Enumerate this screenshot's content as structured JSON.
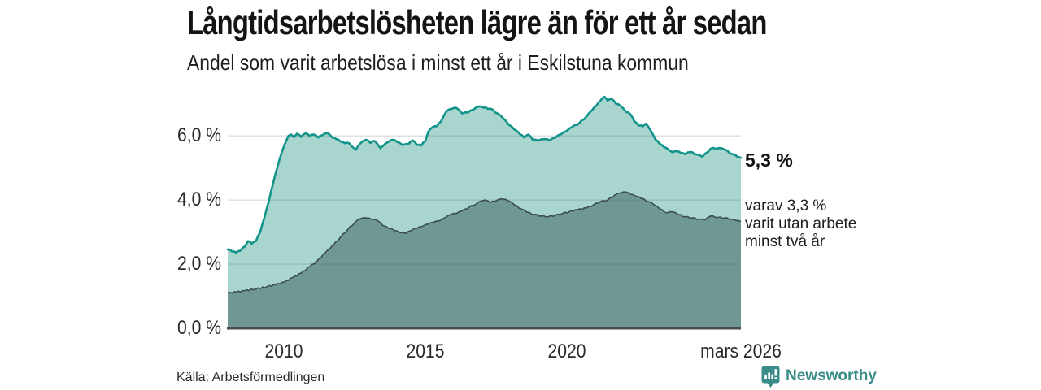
{
  "header": {
    "title": "Långtidsarbetslösheten lägre än för ett år sedan",
    "subtitle": "Andel som varit arbetslösa i minst ett år i Eskilstuna kommun"
  },
  "footer": {
    "source": "Källa: Arbetsförmedlingen",
    "brand": "Newsworthy",
    "brand_color": "#3a8c88"
  },
  "colors": {
    "series1_line": "#12948a",
    "series1_fill": "#a9d5cf",
    "series2_line": "#3c4d4a",
    "series2_fill": "#6f9793",
    "gridline": "rgba(90,100,110,0.22)",
    "baseline": "#4d4d4d"
  },
  "chart_data": {
    "type": "area",
    "title": "Långtidsarbetslösheten lägre än för ett år sedan",
    "subtitle": "Andel som varit arbetslösa i minst ett år i Eskilstuna kommun",
    "x_axis": {
      "min": 2008.0,
      "max": 2026.17,
      "ticks": [
        {
          "value": 2010,
          "label": "2010"
        },
        {
          "value": 2015,
          "label": "2015"
        },
        {
          "value": 2020,
          "label": "2020"
        },
        {
          "value": 2026.17,
          "label": "mars 2026"
        }
      ]
    },
    "y_axis": {
      "min": 0,
      "max": 7.45,
      "gridline_values": [
        2,
        4,
        6
      ],
      "ticks": [
        {
          "value": 0,
          "label": "0,0 %"
        },
        {
          "value": 2,
          "label": "2,0 %"
        },
        {
          "value": 4,
          "label": "4,0 %"
        },
        {
          "value": 6,
          "label": "6,0 %"
        }
      ],
      "grid": true
    },
    "legend_position": "none",
    "annotations": {
      "primary": "5,3 %",
      "secondary_lines": [
        "varav 3,3 %",
        "varit utan arbete",
        "minst två år"
      ]
    },
    "series": [
      {
        "name": "Andel arbetslösa minst ett år",
        "end_value": 5.3,
        "points": [
          [
            2008.0,
            2.46
          ],
          [
            2008.15,
            2.4
          ],
          [
            2008.3,
            2.36
          ],
          [
            2008.45,
            2.42
          ],
          [
            2008.6,
            2.55
          ],
          [
            2008.72,
            2.72
          ],
          [
            2008.85,
            2.64
          ],
          [
            2009.0,
            2.72
          ],
          [
            2009.15,
            3.0
          ],
          [
            2009.3,
            3.45
          ],
          [
            2009.45,
            3.95
          ],
          [
            2009.6,
            4.5
          ],
          [
            2009.75,
            5.0
          ],
          [
            2009.9,
            5.45
          ],
          [
            2010.05,
            5.8
          ],
          [
            2010.15,
            6.0
          ],
          [
            2010.25,
            6.04
          ],
          [
            2010.35,
            5.96
          ],
          [
            2010.45,
            6.07
          ],
          [
            2010.6,
            5.97
          ],
          [
            2010.75,
            6.08
          ],
          [
            2010.9,
            6.0
          ],
          [
            2011.05,
            6.04
          ],
          [
            2011.2,
            5.95
          ],
          [
            2011.35,
            6.02
          ],
          [
            2011.53,
            6.09
          ],
          [
            2011.7,
            5.95
          ],
          [
            2011.85,
            5.9
          ],
          [
            2012.0,
            5.82
          ],
          [
            2012.15,
            5.77
          ],
          [
            2012.3,
            5.77
          ],
          [
            2012.42,
            5.65
          ],
          [
            2012.54,
            5.57
          ],
          [
            2012.7,
            5.77
          ],
          [
            2012.9,
            5.88
          ],
          [
            2013.05,
            5.78
          ],
          [
            2013.2,
            5.84
          ],
          [
            2013.4,
            5.62
          ],
          [
            2013.5,
            5.69
          ],
          [
            2013.7,
            5.82
          ],
          [
            2013.85,
            5.88
          ],
          [
            2014.0,
            5.81
          ],
          [
            2014.2,
            5.71
          ],
          [
            2014.4,
            5.75
          ],
          [
            2014.55,
            5.86
          ],
          [
            2014.7,
            5.72
          ],
          [
            2014.85,
            5.7
          ],
          [
            2015.0,
            5.85
          ],
          [
            2015.1,
            6.13
          ],
          [
            2015.25,
            6.27
          ],
          [
            2015.4,
            6.3
          ],
          [
            2015.55,
            6.45
          ],
          [
            2015.75,
            6.77
          ],
          [
            2015.95,
            6.85
          ],
          [
            2016.1,
            6.87
          ],
          [
            2016.3,
            6.7
          ],
          [
            2016.5,
            6.73
          ],
          [
            2016.7,
            6.82
          ],
          [
            2016.9,
            6.92
          ],
          [
            2017.05,
            6.88
          ],
          [
            2017.3,
            6.85
          ],
          [
            2017.55,
            6.7
          ],
          [
            2017.75,
            6.55
          ],
          [
            2017.95,
            6.35
          ],
          [
            2018.15,
            6.2
          ],
          [
            2018.35,
            6.05
          ],
          [
            2018.5,
            5.95
          ],
          [
            2018.65,
            6.04
          ],
          [
            2018.8,
            5.88
          ],
          [
            2019.0,
            5.85
          ],
          [
            2019.2,
            5.9
          ],
          [
            2019.4,
            5.86
          ],
          [
            2019.6,
            5.95
          ],
          [
            2019.8,
            6.05
          ],
          [
            2020.0,
            6.15
          ],
          [
            2020.2,
            6.28
          ],
          [
            2020.45,
            6.4
          ],
          [
            2020.7,
            6.6
          ],
          [
            2020.9,
            6.8
          ],
          [
            2021.05,
            6.94
          ],
          [
            2021.2,
            7.1
          ],
          [
            2021.34,
            7.22
          ],
          [
            2021.45,
            7.1
          ],
          [
            2021.6,
            7.15
          ],
          [
            2021.75,
            7.0
          ],
          [
            2021.9,
            6.94
          ],
          [
            2022.1,
            6.75
          ],
          [
            2022.25,
            6.68
          ],
          [
            2022.4,
            6.45
          ],
          [
            2022.55,
            6.32
          ],
          [
            2022.7,
            6.3
          ],
          [
            2022.8,
            6.38
          ],
          [
            2022.95,
            6.2
          ],
          [
            2023.15,
            5.88
          ],
          [
            2023.3,
            5.75
          ],
          [
            2023.45,
            5.65
          ],
          [
            2023.65,
            5.54
          ],
          [
            2023.75,
            5.49
          ],
          [
            2023.9,
            5.52
          ],
          [
            2024.05,
            5.46
          ],
          [
            2024.2,
            5.43
          ],
          [
            2024.37,
            5.5
          ],
          [
            2024.6,
            5.42
          ],
          [
            2024.8,
            5.35
          ],
          [
            2025.0,
            5.5
          ],
          [
            2025.1,
            5.6
          ],
          [
            2025.38,
            5.62
          ],
          [
            2025.58,
            5.58
          ],
          [
            2025.87,
            5.43
          ],
          [
            2026.05,
            5.35
          ],
          [
            2026.17,
            5.32
          ]
        ]
      },
      {
        "name": "varav utan arbete minst två år",
        "end_value": 3.3,
        "points": [
          [
            2008.0,
            1.1
          ],
          [
            2008.3,
            1.13
          ],
          [
            2008.6,
            1.17
          ],
          [
            2009.0,
            1.23
          ],
          [
            2009.4,
            1.3
          ],
          [
            2009.7,
            1.36
          ],
          [
            2010.0,
            1.44
          ],
          [
            2010.3,
            1.58
          ],
          [
            2010.6,
            1.72
          ],
          [
            2010.9,
            1.92
          ],
          [
            2011.15,
            2.08
          ],
          [
            2011.45,
            2.35
          ],
          [
            2011.75,
            2.6
          ],
          [
            2012.0,
            2.85
          ],
          [
            2012.25,
            3.08
          ],
          [
            2012.5,
            3.3
          ],
          [
            2012.7,
            3.42
          ],
          [
            2012.9,
            3.44
          ],
          [
            2013.1,
            3.4
          ],
          [
            2013.3,
            3.36
          ],
          [
            2013.5,
            3.2
          ],
          [
            2013.7,
            3.12
          ],
          [
            2013.9,
            3.05
          ],
          [
            2014.1,
            2.98
          ],
          [
            2014.3,
            2.96
          ],
          [
            2014.5,
            3.05
          ],
          [
            2014.7,
            3.12
          ],
          [
            2014.9,
            3.18
          ],
          [
            2015.1,
            3.25
          ],
          [
            2015.3,
            3.31
          ],
          [
            2015.5,
            3.35
          ],
          [
            2015.7,
            3.45
          ],
          [
            2015.9,
            3.55
          ],
          [
            2016.1,
            3.58
          ],
          [
            2016.3,
            3.66
          ],
          [
            2016.55,
            3.78
          ],
          [
            2016.8,
            3.88
          ],
          [
            2017.0,
            3.97
          ],
          [
            2017.1,
            4.0
          ],
          [
            2017.3,
            3.92
          ],
          [
            2017.55,
            4.0
          ],
          [
            2017.75,
            4.03
          ],
          [
            2017.95,
            3.97
          ],
          [
            2018.15,
            3.85
          ],
          [
            2018.4,
            3.72
          ],
          [
            2018.6,
            3.62
          ],
          [
            2018.85,
            3.55
          ],
          [
            2019.1,
            3.5
          ],
          [
            2019.35,
            3.48
          ],
          [
            2019.6,
            3.52
          ],
          [
            2019.85,
            3.58
          ],
          [
            2020.1,
            3.64
          ],
          [
            2020.4,
            3.7
          ],
          [
            2020.7,
            3.75
          ],
          [
            2020.95,
            3.85
          ],
          [
            2021.2,
            3.95
          ],
          [
            2021.45,
            4.0
          ],
          [
            2021.7,
            4.15
          ],
          [
            2021.9,
            4.22
          ],
          [
            2022.1,
            4.25
          ],
          [
            2022.25,
            4.18
          ],
          [
            2022.45,
            4.12
          ],
          [
            2022.65,
            4.05
          ],
          [
            2022.9,
            3.95
          ],
          [
            2023.1,
            3.85
          ],
          [
            2023.3,
            3.72
          ],
          [
            2023.55,
            3.6
          ],
          [
            2023.75,
            3.63
          ],
          [
            2023.95,
            3.55
          ],
          [
            2024.2,
            3.48
          ],
          [
            2024.45,
            3.44
          ],
          [
            2024.7,
            3.4
          ],
          [
            2024.9,
            3.38
          ],
          [
            2025.1,
            3.5
          ],
          [
            2025.35,
            3.46
          ],
          [
            2025.6,
            3.44
          ],
          [
            2025.85,
            3.4
          ],
          [
            2026.0,
            3.36
          ],
          [
            2026.17,
            3.33
          ]
        ]
      }
    ]
  }
}
